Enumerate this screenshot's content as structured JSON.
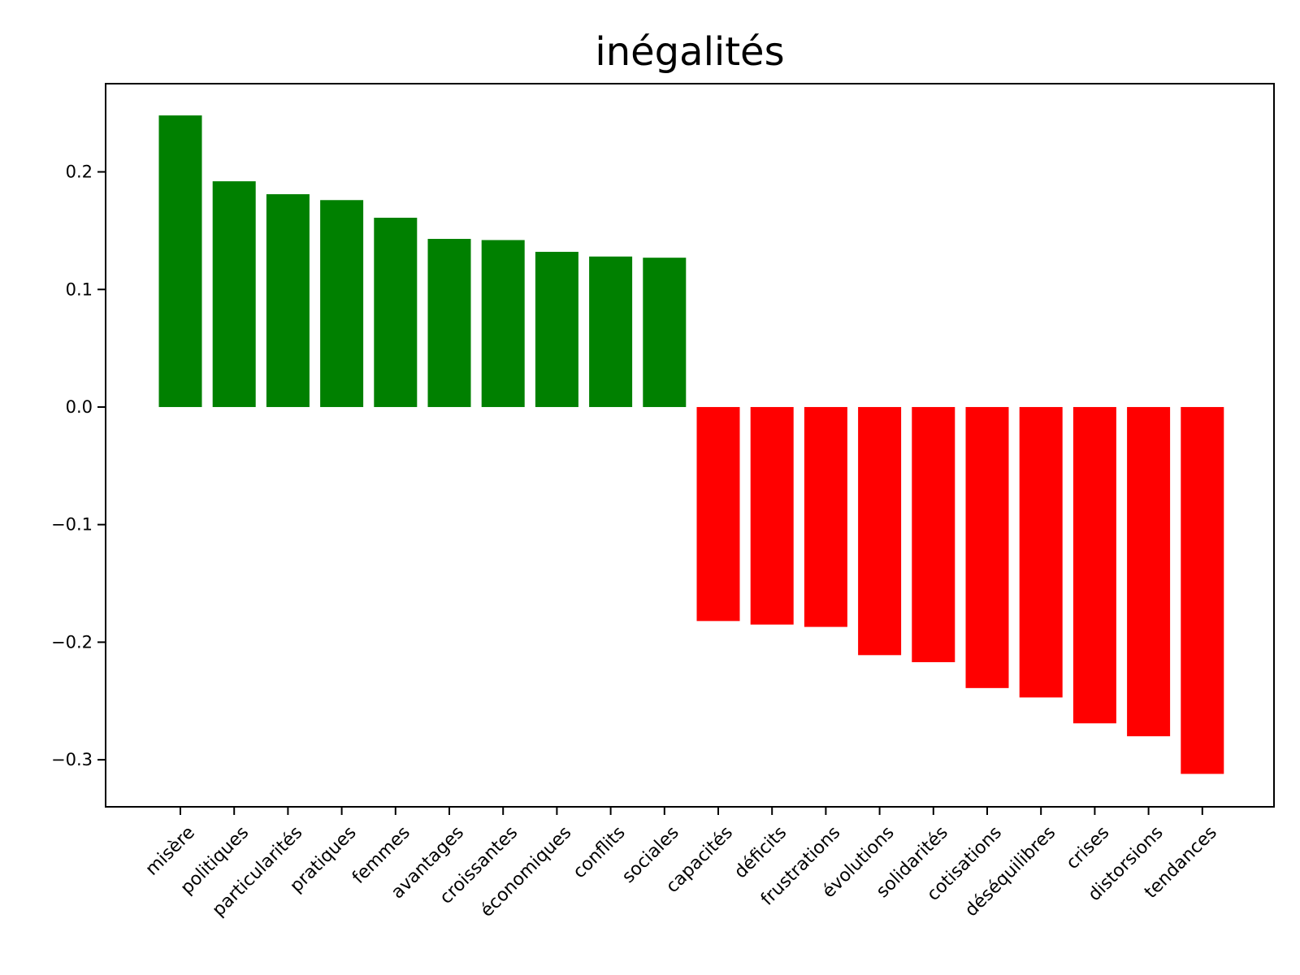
{
  "chart_data": {
    "type": "bar",
    "title": "inégalités",
    "xlabel": "",
    "ylabel": "",
    "categories": [
      "misère",
      "politiques",
      "particularités",
      "pratiques",
      "femmes",
      "avantages",
      "croissantes",
      "économiques",
      "conflits",
      "sociales",
      "capacités",
      "déficits",
      "frustrations",
      "évolutions",
      "solidarités",
      "cotisations",
      "déséquilibres",
      "crises",
      "distorsions",
      "tendances"
    ],
    "values": [
      0.248,
      0.192,
      0.181,
      0.176,
      0.161,
      0.143,
      0.142,
      0.132,
      0.128,
      0.127,
      -0.182,
      -0.185,
      -0.187,
      -0.211,
      -0.217,
      -0.239,
      -0.247,
      -0.269,
      -0.28,
      -0.312
    ],
    "ylim": [
      -0.34,
      0.275
    ],
    "yticks": [
      0.2,
      0.1,
      0.0,
      -0.1,
      -0.2,
      -0.3
    ],
    "ytick_labels": [
      "0.2",
      "0.1",
      "0.0",
      "−0.1",
      "−0.2",
      "−0.3"
    ],
    "grid": false,
    "legend": "none",
    "colors": {
      "positive": "#008000",
      "negative": "#ff0000"
    }
  }
}
